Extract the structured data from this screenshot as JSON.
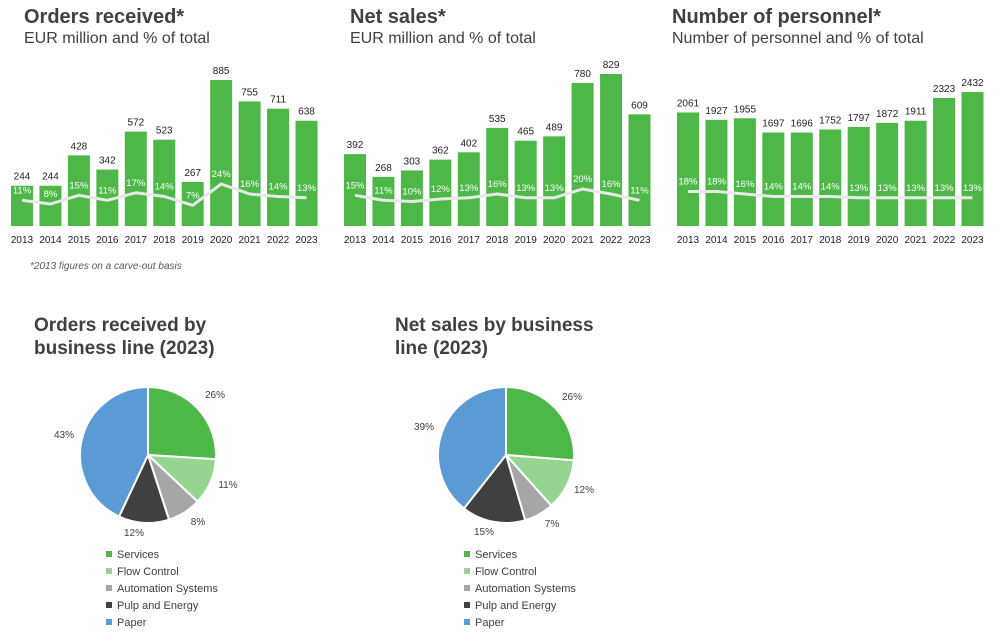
{
  "footnote": "*2013 figures on a carve-out basis",
  "colors": {
    "bar": "#4DB848",
    "pct_line": "#E8E8E8",
    "pct_text": "#ffffff",
    "label": "#222222"
  },
  "chart_data": [
    {
      "type": "bar",
      "title": "Orders received*",
      "subtitle": "EUR million and % of total",
      "categories": [
        "2013",
        "2014",
        "2015",
        "2016",
        "2017",
        "2018",
        "2019",
        "2020",
        "2021",
        "2022",
        "2023"
      ],
      "values": [
        244,
        244,
        428,
        342,
        572,
        523,
        267,
        885,
        755,
        711,
        638
      ],
      "value_labels": [
        "244",
        "244",
        "428",
        "342",
        "572",
        "523",
        "267",
        "885",
        "755",
        "711",
        "638"
      ],
      "pct_labels": [
        "11%",
        "8%",
        "15%",
        "11%",
        "17%",
        "14%",
        "7%",
        "24%",
        "16%",
        "14%",
        "13%"
      ],
      "pct_values": [
        11,
        8,
        15,
        11,
        17,
        14,
        7,
        24,
        16,
        14,
        13
      ],
      "ylim": [
        0,
        900
      ]
    },
    {
      "type": "bar",
      "title": "Net sales*",
      "subtitle": "EUR million and % of total",
      "categories": [
        "2013",
        "2014",
        "2015",
        "2016",
        "2017",
        "2018",
        "2019",
        "2020",
        "2021",
        "2022",
        "2023"
      ],
      "values": [
        392,
        268,
        303,
        362,
        402,
        535,
        465,
        489,
        780,
        829,
        609
      ],
      "value_labels": [
        "392",
        "268",
        "303",
        "362",
        "402",
        "535",
        "465",
        "489",
        "780",
        "829",
        "609"
      ],
      "pct_labels": [
        "15%",
        "11%",
        "10%",
        "12%",
        "13%",
        "16%",
        "13%",
        "13%",
        "20%",
        "16%",
        "11%"
      ],
      "pct_values": [
        15,
        11,
        10,
        12,
        13,
        16,
        13,
        13,
        20,
        16,
        11
      ],
      "ylim": [
        0,
        900
      ]
    },
    {
      "type": "bar",
      "title": "Number of personnel*",
      "subtitle": "Number of personnel and % of total",
      "categories": [
        "2013",
        "2014",
        "2015",
        "2016",
        "2017",
        "2018",
        "2019",
        "2020",
        "2021",
        "2022",
        "2023"
      ],
      "values": [
        2061,
        1927,
        1955,
        1697,
        1696,
        1752,
        1797,
        1872,
        1911,
        2323,
        2432
      ],
      "value_labels": [
        "2061",
        "1927",
        "1955",
        "1697",
        "1696",
        "1752",
        "1797",
        "1872",
        "1911",
        "2323",
        "2432"
      ],
      "pct_labels": [
        "18%",
        "18%",
        "16%",
        "14%",
        "14%",
        "14%",
        "13%",
        "13%",
        "13%",
        "13%",
        "13%"
      ],
      "pct_values": [
        18,
        18,
        16,
        14,
        14,
        14,
        13,
        13,
        13,
        13,
        13
      ],
      "ylim": [
        0,
        2500
      ]
    },
    {
      "type": "pie",
      "title": "Orders received by business line (2023)",
      "categories": [
        "Services",
        "Flow Control",
        "Automation Systems",
        "Pulp and Energy",
        "Paper"
      ],
      "values": [
        26,
        11,
        8,
        12,
        43
      ],
      "labels": [
        "26%",
        "11%",
        "8%",
        "12%",
        "43%"
      ],
      "colors": [
        "#4DB848",
        "#95D58F",
        "#A6A6A6",
        "#404040",
        "#5B9BD5"
      ]
    },
    {
      "type": "pie",
      "title": "Net sales by business line (2023)",
      "categories": [
        "Services",
        "Flow Control",
        "Automation Systems",
        "Pulp and Energy",
        "Paper"
      ],
      "values": [
        26,
        12,
        7,
        15,
        39
      ],
      "labels": [
        "26%",
        "12%",
        "7%",
        "15%",
        "39%"
      ],
      "colors": [
        "#4DB848",
        "#95D58F",
        "#A6A6A6",
        "#404040",
        "#5B9BD5"
      ]
    }
  ]
}
